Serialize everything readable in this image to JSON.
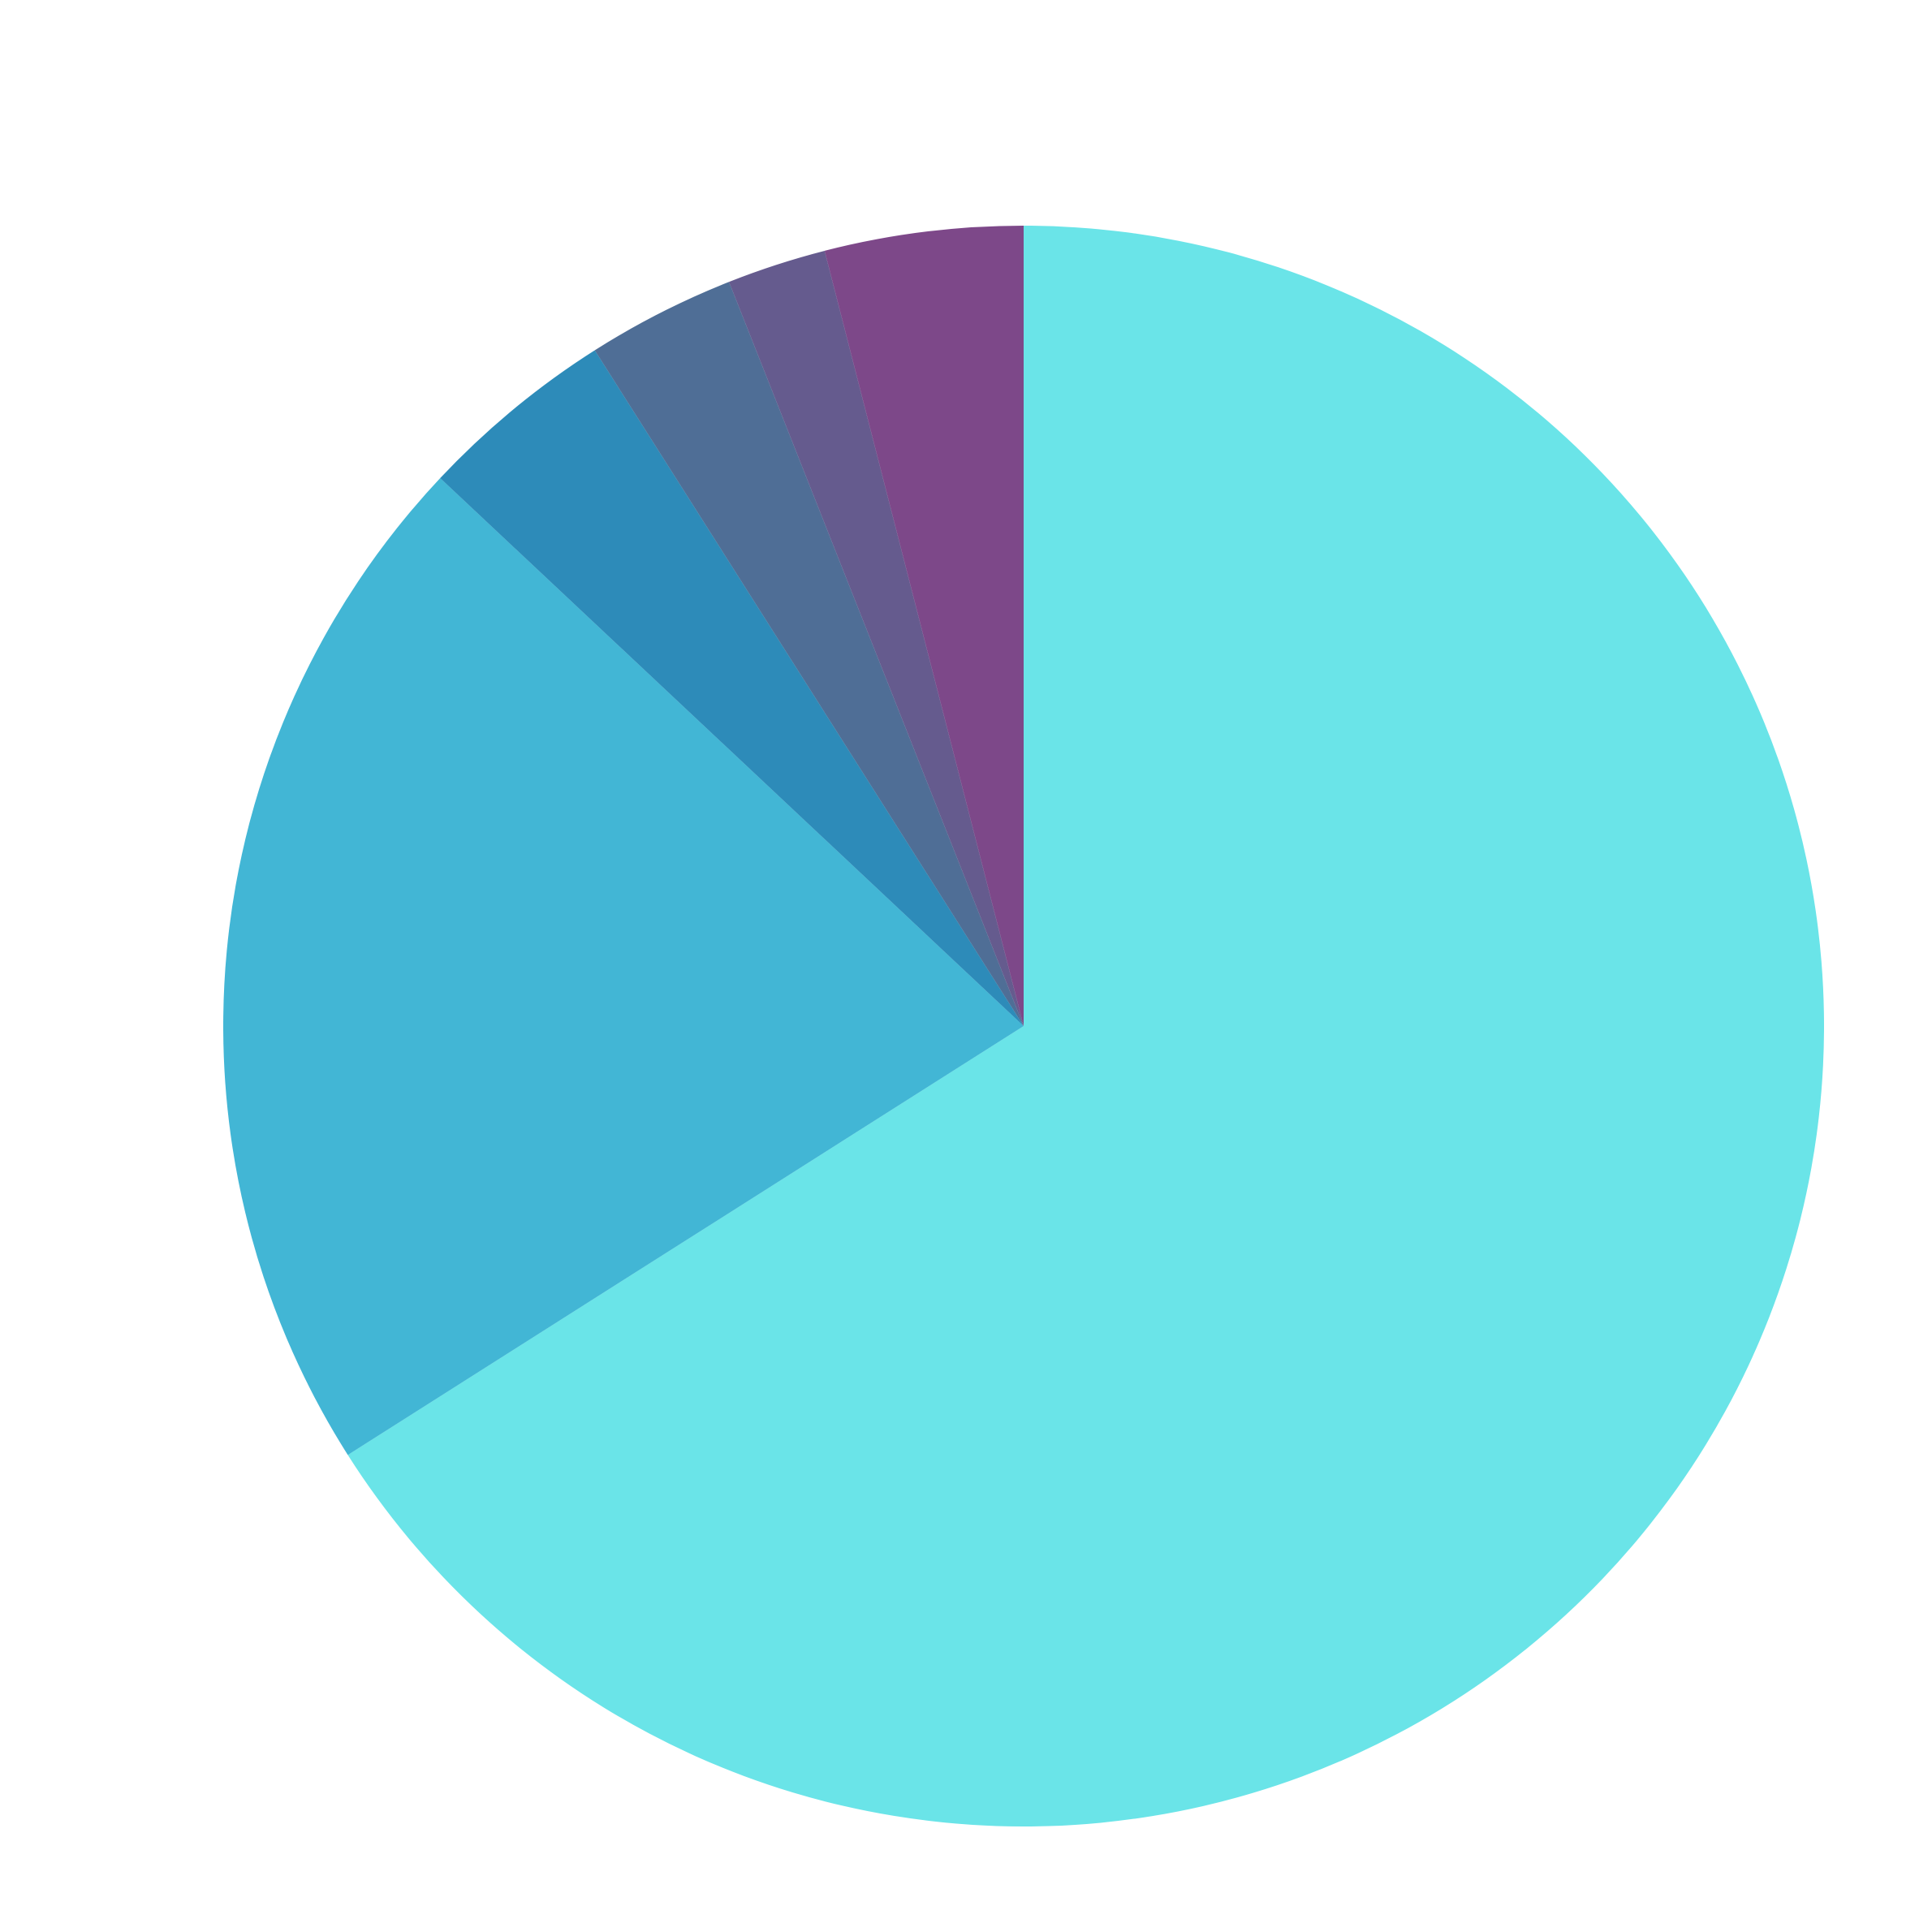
{
  "chart_data": {
    "type": "pie",
    "values": [
      66,
      21,
      4,
      3,
      2,
      4
    ],
    "colors": [
      "#6ae4e8",
      "#42b6d5",
      "#2d8bb9",
      "#4f6e96",
      "#655b8e",
      "#7d4889"
    ],
    "start_angle": 0,
    "direction": "clockwise"
  }
}
